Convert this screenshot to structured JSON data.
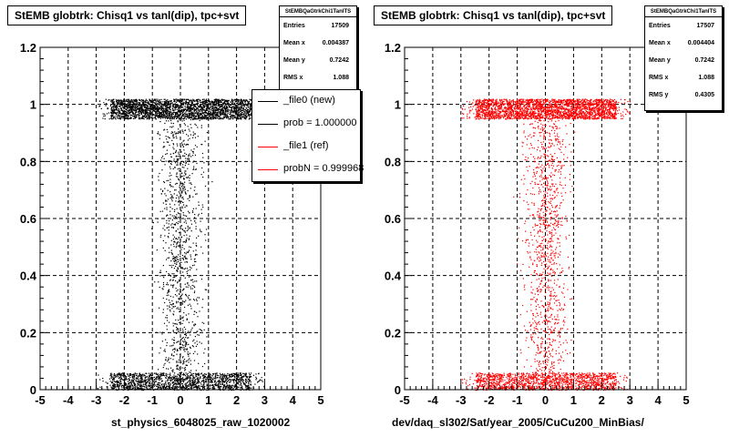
{
  "chart_data": [
    {
      "type": "scatter",
      "title": "StEMB globtrk: Chisq1 vs tanl(dip), tpc+svt",
      "xlabel": "st_physics_6048025_raw_1020002",
      "ylabel": "",
      "xlim": [
        -5,
        5
      ],
      "ylim": [
        0,
        1.2
      ],
      "x_ticks": [
        "-5",
        "-4",
        "-3",
        "-2",
        "-1",
        "0",
        "1",
        "2",
        "3",
        "4",
        "5"
      ],
      "y_ticks": [
        "0",
        "0.2",
        "0.4",
        "0.6",
        "0.8",
        "1",
        "1.2"
      ],
      "grid": true,
      "marker_color": "#000000",
      "stats": {
        "name": "StEMBQaGtrkChi1TanlTS",
        "rows": [
          {
            "label": "Entries",
            "value": "17509"
          },
          {
            "label": "Mean x",
            "value": "0.004387"
          },
          {
            "label": "Mean y",
            "value": "0.7242"
          },
          {
            "label": "RMS x",
            "value": "1.088"
          }
        ]
      },
      "legend": [
        {
          "label": "_file0 (new)",
          "color": "#000000"
        },
        {
          "label": "prob = 1.000000",
          "color": "#000000"
        },
        {
          "label": "_file1 (ref)",
          "color": "#ff0000"
        },
        {
          "label": "probN = 0.999968",
          "color": "#ff0000"
        }
      ],
      "distribution": {
        "band_high": [
          0.95,
          1.02
        ],
        "band_low": [
          0,
          0.06
        ],
        "x_core": [
          -2.5,
          2.5
        ],
        "x_full": [
          -3,
          3
        ]
      }
    },
    {
      "type": "scatter",
      "title": "StEMB globtrk: Chisq1 vs tanl(dip), tpc+svt",
      "xlabel": "dev/daq_sl302/Sat/year_2005/CuCu200_MinBias/",
      "ylabel": "",
      "xlim": [
        -5,
        5
      ],
      "ylim": [
        0,
        1.2
      ],
      "x_ticks": [
        "-5",
        "-4",
        "-3",
        "-2",
        "-1",
        "0",
        "1",
        "2",
        "3",
        "4",
        "5"
      ],
      "y_ticks": [
        "0",
        "0.2",
        "0.4",
        "0.6",
        "0.8",
        "1",
        "1.2"
      ],
      "grid": true,
      "marker_color": "#ff0000",
      "stats": {
        "name": "StEMBQaGtrkChi1TanlTS",
        "rows": [
          {
            "label": "Entries",
            "value": "17507"
          },
          {
            "label": "Mean x",
            "value": "0.004404"
          },
          {
            "label": "Mean y",
            "value": "0.7242"
          },
          {
            "label": "RMS x",
            "value": "1.088"
          },
          {
            "label": "RMS y",
            "value": "0.4305"
          }
        ]
      },
      "distribution": {
        "band_high": [
          0.95,
          1.02
        ],
        "band_low": [
          0,
          0.06
        ],
        "x_core": [
          -2.5,
          2.5
        ],
        "x_full": [
          -3,
          3
        ]
      }
    }
  ]
}
